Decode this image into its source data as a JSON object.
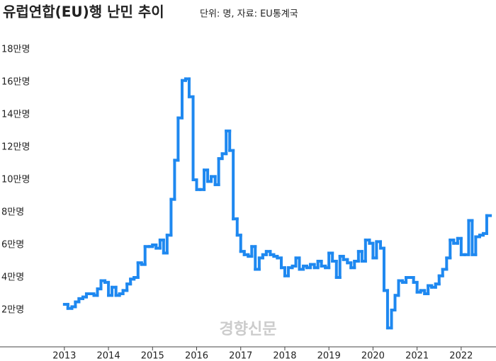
{
  "chart_data": {
    "type": "step-line",
    "title": "유럽연합(EU)행 난민 추이",
    "subtitle": "단위: 명, 자료: EU통계국",
    "watermark": "경향신문",
    "color": "#1e88f0",
    "grid": false,
    "xlim": [
      2011.54,
      2022.79
    ],
    "xticks": [
      2013,
      2014,
      2015,
      2016,
      2017,
      2018,
      2019,
      2020,
      2021,
      2022
    ],
    "ylim": [
      0,
      18
    ],
    "yticks": [
      {
        "value": 2,
        "label": "2만명"
      },
      {
        "value": 4,
        "label": "4만명"
      },
      {
        "value": 6,
        "label": "6만명"
      },
      {
        "value": 8,
        "label": "8만명"
      },
      {
        "value": 10,
        "label": "10만명"
      },
      {
        "value": 12,
        "label": "12만명"
      },
      {
        "value": 14,
        "label": "14만명"
      },
      {
        "value": 16,
        "label": "16만명"
      },
      {
        "value": 18,
        "label": "18만명"
      }
    ],
    "x": [
      2013.0,
      2013.08,
      2013.17,
      2013.25,
      2013.33,
      2013.42,
      2013.5,
      2013.58,
      2013.67,
      2013.75,
      2013.83,
      2013.92,
      2014.0,
      2014.08,
      2014.17,
      2014.25,
      2014.33,
      2014.42,
      2014.5,
      2014.58,
      2014.67,
      2014.75,
      2014.83,
      2014.92,
      2015.0,
      2015.08,
      2015.17,
      2015.25,
      2015.33,
      2015.42,
      2015.5,
      2015.58,
      2015.67,
      2015.75,
      2015.83,
      2015.92,
      2016.0,
      2016.08,
      2016.17,
      2016.25,
      2016.33,
      2016.42,
      2016.5,
      2016.58,
      2016.67,
      2016.75,
      2016.83,
      2016.92,
      2017.0,
      2017.08,
      2017.17,
      2017.25,
      2017.33,
      2017.42,
      2017.5,
      2017.58,
      2017.67,
      2017.75,
      2017.83,
      2017.92,
      2018.0,
      2018.08,
      2018.17,
      2018.25,
      2018.33,
      2018.42,
      2018.5,
      2018.58,
      2018.67,
      2018.75,
      2018.83,
      2018.92,
      2019.0,
      2019.08,
      2019.17,
      2019.25,
      2019.33,
      2019.42,
      2019.5,
      2019.58,
      2019.67,
      2019.75,
      2019.83,
      2019.92,
      2020.0,
      2020.08,
      2020.17,
      2020.25,
      2020.33,
      2020.42,
      2020.5,
      2020.58,
      2020.67,
      2020.75,
      2020.83,
      2020.92,
      2021.0,
      2021.08,
      2021.17,
      2021.25,
      2021.33,
      2021.42,
      2021.5,
      2021.58,
      2021.67,
      2021.75,
      2021.83,
      2021.92,
      2022.0,
      2022.08,
      2022.17,
      2022.25,
      2022.33,
      2022.42,
      2022.5,
      2022.58
    ],
    "values": [
      2.35,
      2.1,
      2.2,
      2.5,
      2.7,
      2.8,
      3.0,
      3.0,
      2.9,
      3.3,
      3.8,
      3.7,
      2.9,
      3.4,
      2.9,
      3.0,
      3.2,
      3.6,
      3.9,
      4.0,
      4.9,
      4.8,
      5.9,
      5.9,
      6.0,
      5.8,
      6.3,
      5.5,
      6.6,
      8.8,
      11.2,
      13.8,
      16.1,
      16.2,
      15.1,
      10.0,
      9.4,
      9.4,
      10.6,
      9.9,
      10.2,
      9.7,
      11.3,
      11.6,
      13.0,
      11.8,
      7.6,
      6.6,
      5.6,
      5.4,
      5.3,
      5.9,
      4.5,
      5.2,
      5.4,
      5.6,
      5.4,
      5.3,
      5.2,
      4.6,
      4.1,
      4.6,
      4.7,
      5.2,
      4.5,
      4.7,
      4.6,
      4.8,
      4.6,
      5.0,
      4.7,
      4.6,
      5.5,
      5.0,
      4.0,
      5.3,
      5.1,
      4.9,
      4.6,
      5.0,
      5.6,
      5.0,
      6.3,
      6.1,
      5.2,
      6.2,
      5.8,
      3.2,
      0.9,
      2.0,
      2.9,
      3.8,
      3.7,
      4.0,
      4.0,
      3.7,
      3.1,
      3.2,
      3.0,
      3.5,
      3.4,
      3.6,
      4.1,
      4.5,
      5.2,
      6.3,
      6.1,
      6.4,
      5.4,
      5.4,
      7.5,
      5.4,
      6.5,
      6.6,
      6.7,
      7.8
    ]
  }
}
